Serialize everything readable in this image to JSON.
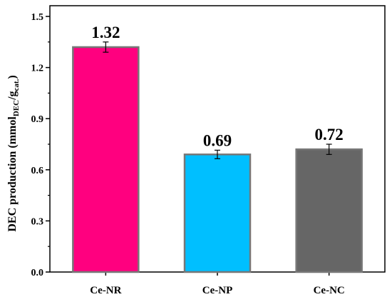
{
  "chart_data": {
    "type": "bar",
    "categories": [
      "Ce-NR",
      "Ce-NP",
      "Ce-NC"
    ],
    "values": [
      1.32,
      0.69,
      0.72
    ],
    "errors": [
      0.03,
      0.025,
      0.03
    ],
    "data_labels": [
      "1.32",
      "0.69",
      "0.72"
    ],
    "bar_colors": [
      "#ff007f",
      "#00bfff",
      "#666666"
    ],
    "bar_edge_color": "#777777",
    "ylabel": {
      "main": "DEC production (mmol",
      "sub1": "DEC",
      "mid": "/g",
      "sub2": "cat.",
      "end": ")"
    },
    "ylim": [
      0,
      1.5
    ],
    "yticks": [
      "0.0",
      "0.3",
      "0.6",
      "0.9",
      "1.2",
      "1.5"
    ],
    "title": "",
    "xlabel": "",
    "grid": false,
    "legend": false
  }
}
